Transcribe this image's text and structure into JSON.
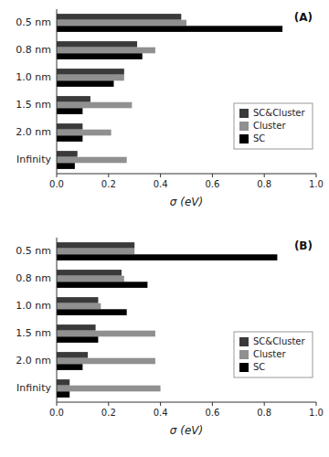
{
  "chart_data": [
    {
      "type": "bar",
      "orientation": "horizontal",
      "categories": [
        "0.5 nm",
        "0.8 nm",
        "1.0 nm",
        "1.5 nm",
        "2.0 nm",
        "Infinity"
      ],
      "series": [
        {
          "name": "SC&Cluster",
          "color": "#3a3a3a",
          "values": [
            0.48,
            0.31,
            0.26,
            0.13,
            0.1,
            0.08
          ]
        },
        {
          "name": "Cluster",
          "color": "#909090",
          "values": [
            0.5,
            0.38,
            0.26,
            0.29,
            0.21,
            0.27
          ]
        },
        {
          "name": "SC",
          "color": "#000000",
          "values": [
            0.87,
            0.33,
            0.22,
            0.1,
            0.1,
            0.07
          ]
        }
      ],
      "xlabel": "σ (eV)",
      "xlim": [
        0.0,
        1.0
      ],
      "xticks": [
        {
          "value": 0.0,
          "label": "0.0"
        },
        0.2,
        0.4,
        0.6,
        0.8,
        {
          "value": 1.0,
          "label": "1.0"
        }
      ],
      "annotations": [
        "(A)"
      ],
      "legend": "lower-right",
      "grid": false
    },
    {
      "type": "bar",
      "orientation": "horizontal",
      "categories": [
        "0.5 nm",
        "0.8 nm",
        "1.0 nm",
        "1.5 nm",
        "2.0 nm",
        "Infinity"
      ],
      "series": [
        {
          "name": "SC&Cluster",
          "color": "#3a3a3a",
          "values": [
            0.3,
            0.25,
            0.16,
            0.15,
            0.12,
            0.05
          ]
        },
        {
          "name": "Cluster",
          "color": "#909090",
          "values": [
            0.3,
            0.26,
            0.17,
            0.38,
            0.38,
            0.4
          ]
        },
        {
          "name": "SC",
          "color": "#000000",
          "values": [
            0.85,
            0.35,
            0.27,
            0.16,
            0.1,
            0.05
          ]
        }
      ],
      "xlabel": "σ (eV)",
      "xlim": [
        0.0,
        1.0
      ],
      "xticks": [
        {
          "value": 0.0,
          "label": "0.0"
        },
        0.2,
        0.4,
        0.6,
        0.8,
        {
          "value": 1.0,
          "label": "1.0"
        }
      ],
      "annotations": [
        "(B)"
      ],
      "legend": "lower-right",
      "grid": false
    }
  ]
}
